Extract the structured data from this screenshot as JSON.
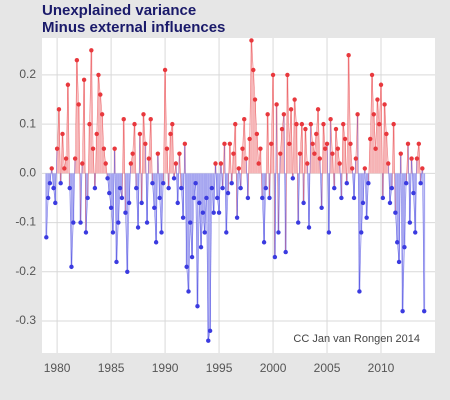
{
  "chart_data": {
    "type": "residual",
    "title": "Unexplained variance",
    "subtitle": "Minus external influences",
    "annotation": "CC Jan van Rongen 2014",
    "colors": {
      "positive": "#e8383d",
      "negative": "#3b3be0",
      "positive_fill": "#f6b3b5",
      "negative_fill": "#a6a6f0"
    },
    "xlim": [
      1978.6,
      2015
    ],
    "ylim": [
      -0.365,
      0.275
    ],
    "xticks": [
      1980,
      1985,
      1990,
      1995,
      2000,
      2005,
      2010
    ],
    "yticks": [
      -0.3,
      -0.2,
      -0.1,
      {
        "value": 0,
        "label": "0.0"
      },
      0.1,
      0.2
    ],
    "grid": true,
    "x": [
      1979,
      1979.17,
      1979.33,
      1979.5,
      1979.67,
      1979.83,
      1980,
      1980.17,
      1980.33,
      1980.5,
      1980.67,
      1980.83,
      1981,
      1981.17,
      1981.33,
      1981.5,
      1981.67,
      1981.83,
      1982,
      1982.17,
      1982.33,
      1982.5,
      1982.67,
      1982.83,
      1983,
      1983.17,
      1983.33,
      1983.5,
      1983.67,
      1983.83,
      1984,
      1984.17,
      1984.33,
      1984.5,
      1984.67,
      1984.83,
      1985,
      1985.17,
      1985.33,
      1985.5,
      1985.67,
      1985.83,
      1986,
      1986.17,
      1986.33,
      1986.5,
      1986.67,
      1986.83,
      1987,
      1987.17,
      1987.33,
      1987.5,
      1987.67,
      1987.83,
      1988,
      1988.17,
      1988.33,
      1988.5,
      1988.67,
      1988.83,
      1989,
      1989.17,
      1989.33,
      1989.5,
      1989.67,
      1989.83,
      1990,
      1990.17,
      1990.33,
      1990.5,
      1990.67,
      1990.83,
      1991,
      1991.17,
      1991.33,
      1991.5,
      1991.67,
      1991.83,
      1992,
      1992.17,
      1992.33,
      1992.5,
      1992.67,
      1992.83,
      1993,
      1993.17,
      1993.33,
      1993.5,
      1993.67,
      1993.83,
      1994,
      1994.17,
      1994.33,
      1994.5,
      1994.67,
      1994.83,
      1995,
      1995.17,
      1995.33,
      1995.5,
      1995.67,
      1995.83,
      1996,
      1996.17,
      1996.33,
      1996.5,
      1996.67,
      1996.83,
      1997,
      1997.17,
      1997.33,
      1997.5,
      1997.67,
      1997.83,
      1998,
      1998.17,
      1998.33,
      1998.5,
      1998.67,
      1998.83,
      1999,
      1999.17,
      1999.33,
      1999.5,
      1999.67,
      1999.83,
      2000,
      2000.17,
      2000.33,
      2000.5,
      2000.67,
      2000.83,
      2001,
      2001.17,
      2001.33,
      2001.5,
      2001.67,
      2001.83,
      2002,
      2002.17,
      2002.33,
      2002.5,
      2002.67,
      2002.83,
      2003,
      2003.17,
      2003.33,
      2003.5,
      2003.67,
      2003.83,
      2004,
      2004.17,
      2004.33,
      2004.5,
      2004.67,
      2004.83,
      2005,
      2005.17,
      2005.33,
      2005.5,
      2005.67,
      2005.83,
      2006,
      2006.17,
      2006.33,
      2006.5,
      2006.67,
      2006.83,
      2007,
      2007.17,
      2007.33,
      2007.5,
      2007.67,
      2007.83,
      2008,
      2008.17,
      2008.33,
      2008.5,
      2008.67,
      2008.83,
      2009,
      2009.17,
      2009.33,
      2009.5,
      2009.67,
      2009.83,
      2010,
      2010.17,
      2010.33,
      2010.5,
      2010.67,
      2010.83,
      2011,
      2011.17,
      2011.33,
      2011.5,
      2011.67,
      2011.83,
      2012,
      2012.17,
      2012.33,
      2012.5,
      2012.67,
      2012.83,
      2013,
      2013.17,
      2013.33,
      2013.5,
      2013.67,
      2013.83,
      2014
    ],
    "values": [
      -0.13,
      -0.05,
      -0.02,
      0.01,
      -0.03,
      -0.06,
      0.05,
      0.13,
      -0.02,
      0.08,
      0.01,
      0.03,
      0.18,
      -0.03,
      -0.19,
      -0.1,
      0.03,
      0.23,
      0.14,
      -0.1,
      0.02,
      0.19,
      -0.12,
      -0.05,
      0.1,
      0.25,
      0.05,
      -0.03,
      0.08,
      0.2,
      0.16,
      0.12,
      0.05,
      0.02,
      -0.01,
      -0.04,
      -0.07,
      -0.12,
      0.05,
      -0.18,
      -0.1,
      -0.03,
      -0.05,
      0.11,
      -0.08,
      -0.2,
      -0.06,
      0.02,
      0.04,
      0.1,
      -0.03,
      -0.11,
      0.08,
      -0.06,
      0.12,
      0.06,
      -0.1,
      0.03,
      0.11,
      -0.02,
      -0.07,
      -0.14,
      0.04,
      -0.05,
      -0.12,
      -0.02,
      0.21,
      0.05,
      -0.03,
      0.08,
      0.1,
      -0.01,
      0.02,
      -0.06,
      0.04,
      -0.03,
      -0.09,
      0.06,
      -0.19,
      -0.24,
      -0.1,
      -0.17,
      -0.05,
      -0.02,
      -0.27,
      -0.06,
      -0.15,
      -0.08,
      -0.12,
      -0.05,
      -0.34,
      -0.32,
      -0.03,
      -0.08,
      0.02,
      -0.05,
      -0.08,
      0.02,
      -0.03,
      0.06,
      -0.12,
      -0.04,
      0.06,
      -0.02,
      0.04,
      0.1,
      -0.09,
      0.01,
      -0.03,
      0.05,
      0.11,
      0.03,
      -0.05,
      0.07,
      0.27,
      0.21,
      0.15,
      0.08,
      0.02,
      0.05,
      -0.05,
      -0.14,
      -0.03,
      0.12,
      -0.05,
      0.06,
      0.2,
      -0.17,
      0.14,
      -0.12,
      0.04,
      0.09,
      0.12,
      -0.16,
      0.2,
      0.06,
      0.13,
      -0.01,
      0.15,
      0.1,
      -0.1,
      0.04,
      0.1,
      -0.06,
      0.09,
      0.02,
      -0.11,
      0.1,
      0.06,
      0.04,
      0.08,
      0.13,
      0.03,
      -0.07,
      0.1,
      0.05,
      0.06,
      -0.12,
      0.11,
      0.04,
      -0.03,
      0.09,
      0.05,
      0.02,
      -0.05,
      0.1,
      0.07,
      -0.02,
      0.24,
      0.06,
      0.01,
      -0.05,
      0.03,
      0.12,
      -0.24,
      -0.12,
      -0.06,
      0.01,
      -0.09,
      -0.02,
      0.07,
      0.2,
      0.12,
      0.05,
      0.15,
      0.1,
      0.18,
      -0.05,
      0.14,
      0.08,
      0.02,
      -0.06,
      -0.03,
      0.1,
      -0.08,
      -0.14,
      -0.18,
      0.04,
      -0.28,
      -0.15,
      -0.02,
      0.06,
      -0.1,
      0.03,
      -0.04,
      -0.12,
      0.03,
      0.06,
      -0.02,
      0.01,
      -0.28
    ]
  }
}
